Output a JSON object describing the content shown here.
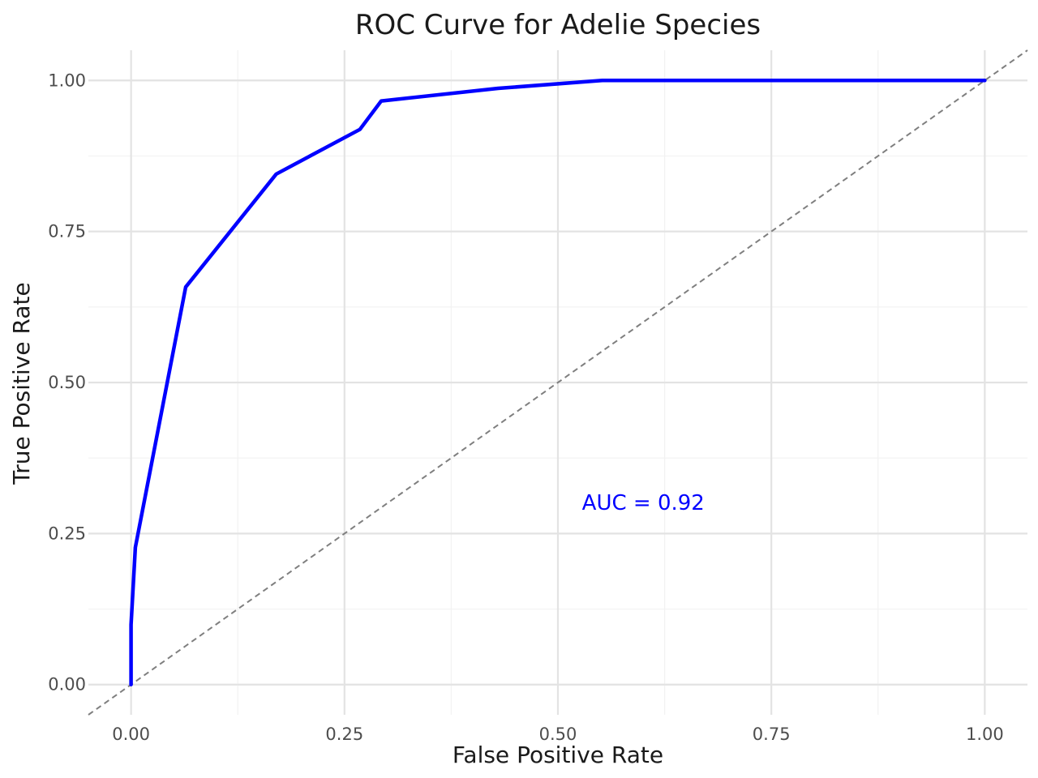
{
  "chart_data": {
    "type": "line",
    "title": "ROC Curve for Adelie Species",
    "xlabel": "False Positive Rate",
    "ylabel": "True Positive Rate",
    "xlim": [
      -0.05,
      1.05
    ],
    "ylim": [
      -0.05,
      1.05
    ],
    "xticks": [
      0,
      0.25,
      0.5,
      0.75,
      1
    ],
    "xtick_labels": [
      "0.00",
      "0.25",
      "0.50",
      "0.75",
      "1.00"
    ],
    "yticks": [
      0,
      0.25,
      0.5,
      0.75,
      1
    ],
    "ytick_labels": [
      "0.00",
      "0.25",
      "0.50",
      "0.75",
      "1.00"
    ],
    "grid": true,
    "series": [
      {
        "color": "#0000ff",
        "x": [
          0.0,
          0.0,
          0.005,
          0.064,
          0.17,
          0.268,
          0.293,
          0.43,
          0.552,
          1.0
        ],
        "y": [
          0.0,
          0.099,
          0.227,
          0.658,
          0.845,
          0.919,
          0.966,
          0.987,
          1.0,
          1.0
        ]
      }
    ],
    "reference_line": {
      "style": "dashed",
      "color": "#7f7f7f",
      "x": [
        -0.05,
        1.05
      ],
      "y": [
        -0.05,
        1.05
      ]
    },
    "annotations": [
      {
        "text": "AUC = 0.92",
        "x": 0.6,
        "y": 0.3,
        "color": "#0000ff"
      }
    ]
  }
}
